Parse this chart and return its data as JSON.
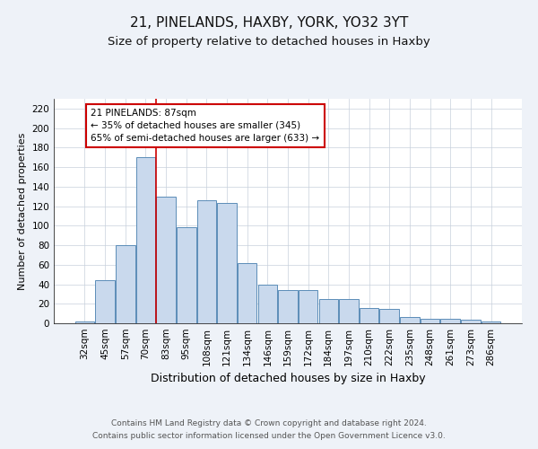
{
  "title1": "21, PINELANDS, HAXBY, YORK, YO32 3YT",
  "title2": "Size of property relative to detached houses in Haxby",
  "xlabel": "Distribution of detached houses by size in Haxby",
  "ylabel": "Number of detached properties",
  "categories": [
    "32sqm",
    "45sqm",
    "57sqm",
    "70sqm",
    "83sqm",
    "95sqm",
    "108sqm",
    "121sqm",
    "134sqm",
    "146sqm",
    "159sqm",
    "172sqm",
    "184sqm",
    "197sqm",
    "210sqm",
    "222sqm",
    "235sqm",
    "248sqm",
    "261sqm",
    "273sqm",
    "286sqm"
  ],
  "values": [
    2,
    44,
    80,
    170,
    130,
    98,
    126,
    123,
    62,
    40,
    34,
    34,
    25,
    25,
    16,
    15,
    6,
    5,
    5,
    4,
    2
  ],
  "bar_color": "#c9d9ed",
  "bar_edge_color": "#5b8db8",
  "property_label": "21 PINELANDS: 87sqm",
  "pct_smaller": "35% of detached houses are smaller (345)",
  "pct_larger": "65% of semi-detached houses are larger (633)",
  "vline_index": 3.5,
  "annotation_box_color": "#ffffff",
  "annotation_box_edge": "#cc0000",
  "ylim": [
    0,
    230
  ],
  "yticks": [
    0,
    20,
    40,
    60,
    80,
    100,
    120,
    140,
    160,
    180,
    200,
    220
  ],
  "footer1": "Contains HM Land Registry data © Crown copyright and database right 2024.",
  "footer2": "Contains public sector information licensed under the Open Government Licence v3.0.",
  "bg_color": "#eef2f8",
  "plot_bg_color": "#ffffff",
  "title1_fontsize": 11,
  "title2_fontsize": 9.5,
  "xlabel_fontsize": 9,
  "ylabel_fontsize": 8,
  "tick_fontsize": 7.5,
  "footer_fontsize": 6.5,
  "vline_color": "#cc0000",
  "grid_color": "#c8d0dc"
}
